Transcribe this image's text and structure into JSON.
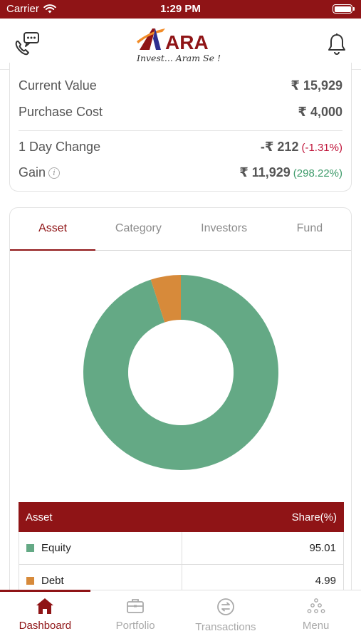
{
  "status_bar": {
    "carrier": "Carrier",
    "time": "1:29 PM"
  },
  "header": {
    "logo_text": "ARA",
    "tagline": "Invest... Aram Se !"
  },
  "summary": {
    "current_value_label": "Current Value",
    "current_value": "₹ 15,929",
    "purchase_cost_label": "Purchase Cost",
    "purchase_cost": "₹ 4,000",
    "day_change_label": "1 Day Change",
    "day_change": "-₹ 212",
    "day_change_pct": "(-1.31%)",
    "gain_label": "Gain",
    "gain": "₹ 11,929",
    "gain_pct": "(298.22%)"
  },
  "tabs": [
    {
      "label": "Asset",
      "active": true
    },
    {
      "label": "Category",
      "active": false
    },
    {
      "label": "Investors",
      "active": false
    },
    {
      "label": "Fund",
      "active": false
    }
  ],
  "chart_data": {
    "type": "pie",
    "categories": [
      "Equity",
      "Debt"
    ],
    "values": [
      95.01,
      4.99
    ],
    "colors": [
      "#64a985",
      "#d78a3a"
    ]
  },
  "table": {
    "header_asset": "Asset",
    "header_share": "Share(%)",
    "rows": [
      {
        "name": "Equity",
        "share": "95.01",
        "color": "#64a985"
      },
      {
        "name": "Debt",
        "share": "4.99",
        "color": "#d78a3a"
      }
    ]
  },
  "bottom_nav": [
    {
      "label": "Dashboard",
      "icon": "home-icon",
      "active": true
    },
    {
      "label": "Portfolio",
      "icon": "briefcase-icon",
      "active": false
    },
    {
      "label": "Transactions",
      "icon": "transactions-icon",
      "active": false
    },
    {
      "label": "Menu",
      "icon": "menu-dots-icon",
      "active": false
    }
  ],
  "colors": {
    "brand": "#8f1416",
    "positive": "#3e9b6a",
    "negative": "#c0153a"
  }
}
